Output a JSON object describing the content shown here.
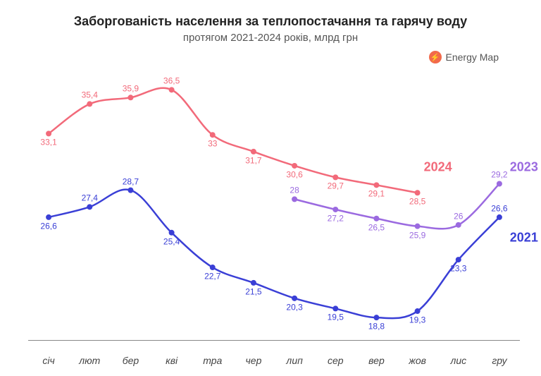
{
  "title": "Заборгованість населення за теплопостачання та гарячу воду",
  "subtitle": "протягом 2021-2024 років, млрд грн",
  "brand": {
    "label": "Energy Map",
    "icon_bg": "#f26a4b"
  },
  "title_fontsize": 18,
  "subtitle_fontsize": 15,
  "background_color": "#ffffff",
  "axis_color": "#888888",
  "xlabel_color": "#444444",
  "xlabel_fontsize": 14,
  "data_label_fontsize": 12,
  "series_label_fontsize": 18,
  "line_width": 2.5,
  "marker_radius": 4,
  "ylim": [
    17,
    38
  ],
  "months": [
    "січ",
    "лют",
    "бер",
    "кві",
    "тра",
    "чер",
    "лип",
    "сер",
    "вер",
    "жов",
    "лис",
    "гру"
  ],
  "series": {
    "2024": {
      "color": "#f26a7a",
      "label_color": "#f26a7a",
      "values": [
        33.1,
        35.4,
        35.9,
        36.5,
        33.0,
        31.7,
        30.6,
        29.7,
        29.1,
        28.5,
        null,
        null
      ],
      "label_positions": [
        "below",
        "above",
        "above",
        "above",
        "below",
        "below",
        "below",
        "below",
        "below",
        "below",
        null,
        null
      ],
      "series_label": "2024",
      "series_label_pos": {
        "month_index": 9.5,
        "y": 30.5
      }
    },
    "2023": {
      "color": "#9b6ae0",
      "label_color": "#9b6ae0",
      "values": [
        null,
        null,
        null,
        null,
        null,
        null,
        28.0,
        27.2,
        26.5,
        25.9,
        26.0,
        29.2
      ],
      "label_positions": [
        null,
        null,
        null,
        null,
        null,
        null,
        "above",
        "below",
        "below",
        "below",
        "above",
        "above"
      ],
      "series_label": "2023",
      "series_label_pos": {
        "month_index": 11.6,
        "y": 30.5
      }
    },
    "2021": {
      "color": "#3a3fd6",
      "label_color": "#3a3fd6",
      "values": [
        26.6,
        27.4,
        28.7,
        25.4,
        22.7,
        21.5,
        20.3,
        19.5,
        18.8,
        19.3,
        23.3,
        26.6
      ],
      "label_positions": [
        "below",
        "above",
        "above",
        "below",
        "below",
        "below",
        "below",
        "below",
        "below",
        "below",
        "below",
        "above"
      ],
      "series_label": "2021",
      "series_label_pos": {
        "month_index": 11.6,
        "y": 25.0
      }
    }
  }
}
